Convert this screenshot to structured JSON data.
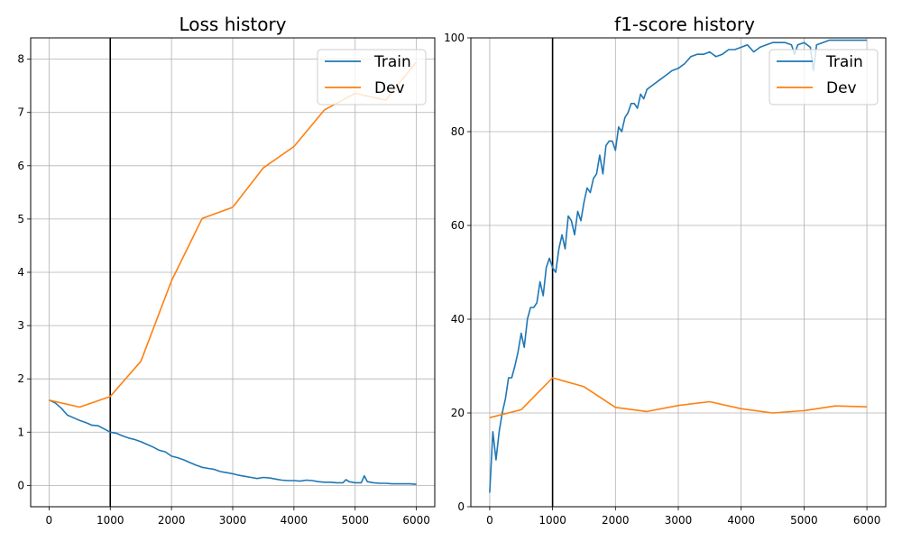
{
  "chart_data": [
    {
      "type": "line",
      "title": "Loss history",
      "xlim": [
        -300,
        6300
      ],
      "ylim": [
        -0.4,
        8.4
      ],
      "xticks": [
        0,
        1000,
        2000,
        3000,
        4000,
        5000,
        6000
      ],
      "yticks": [
        0,
        1,
        2,
        3,
        4,
        5,
        6,
        7,
        8
      ],
      "grid": true,
      "legend_position": "upper-right",
      "vline_x": 1000,
      "series": [
        {
          "name": "Train",
          "color": "#1f77b4",
          "x": [
            0,
            100,
            200,
            300,
            400,
            500,
            600,
            700,
            800,
            900,
            1000,
            1100,
            1200,
            1300,
            1400,
            1500,
            1600,
            1700,
            1800,
            1900,
            2000,
            2100,
            2200,
            2300,
            2400,
            2500,
            2600,
            2700,
            2800,
            2900,
            3000,
            3100,
            3200,
            3300,
            3400,
            3500,
            3600,
            3700,
            3800,
            3900,
            4000,
            4100,
            4200,
            4300,
            4400,
            4500,
            4600,
            4700,
            4800,
            4850,
            4900,
            5000,
            5100,
            5150,
            5200,
            5300,
            5400,
            5500,
            5600,
            5700,
            5800,
            5900,
            6000
          ],
          "y": [
            1.6,
            1.55,
            1.45,
            1.32,
            1.27,
            1.22,
            1.18,
            1.13,
            1.12,
            1.06,
            1.0,
            0.98,
            0.93,
            0.89,
            0.86,
            0.82,
            0.77,
            0.72,
            0.66,
            0.63,
            0.55,
            0.52,
            0.48,
            0.43,
            0.38,
            0.34,
            0.32,
            0.3,
            0.26,
            0.24,
            0.22,
            0.19,
            0.17,
            0.15,
            0.13,
            0.15,
            0.14,
            0.12,
            0.1,
            0.09,
            0.09,
            0.08,
            0.1,
            0.09,
            0.07,
            0.06,
            0.06,
            0.05,
            0.05,
            0.11,
            0.07,
            0.05,
            0.05,
            0.18,
            0.07,
            0.05,
            0.04,
            0.04,
            0.03,
            0.03,
            0.03,
            0.03,
            0.02
          ]
        },
        {
          "name": "Dev",
          "color": "#ff7f0e",
          "x": [
            0,
            500,
            1000,
            1500,
            2000,
            2500,
            3000,
            3500,
            4000,
            4500,
            5000,
            5500,
            6000
          ],
          "y": [
            1.6,
            1.47,
            1.67,
            2.33,
            3.84,
            5.01,
            5.22,
            5.96,
            6.36,
            7.05,
            7.36,
            7.23,
            7.95
          ]
        }
      ]
    },
    {
      "type": "line",
      "title": "f1-score history",
      "xlim": [
        -300,
        6300
      ],
      "ylim": [
        0,
        100
      ],
      "xticks": [
        0,
        1000,
        2000,
        3000,
        4000,
        5000,
        6000
      ],
      "yticks": [
        0,
        20,
        40,
        60,
        80,
        100
      ],
      "grid": true,
      "legend_position": "upper-right",
      "vline_x": 1000,
      "series": [
        {
          "name": "Train",
          "color": "#1f77b4",
          "x": [
            0,
            50,
            100,
            150,
            200,
            250,
            300,
            350,
            400,
            450,
            500,
            550,
            600,
            650,
            700,
            750,
            800,
            850,
            900,
            950,
            1000,
            1050,
            1100,
            1150,
            1200,
            1250,
            1300,
            1350,
            1400,
            1450,
            1500,
            1550,
            1600,
            1650,
            1700,
            1750,
            1800,
            1850,
            1900,
            1950,
            2000,
            2050,
            2100,
            2150,
            2200,
            2250,
            2300,
            2350,
            2400,
            2450,
            2500,
            2600,
            2700,
            2800,
            2900,
            3000,
            3100,
            3200,
            3300,
            3400,
            3500,
            3600,
            3700,
            3800,
            3900,
            4000,
            4100,
            4200,
            4300,
            4400,
            4500,
            4600,
            4700,
            4800,
            4850,
            4900,
            5000,
            5100,
            5150,
            5200,
            5300,
            5400,
            5500,
            5600,
            5700,
            5800,
            5900,
            6000
          ],
          "y": [
            3,
            16,
            10,
            16,
            20,
            23,
            27.5,
            27.5,
            30,
            33,
            37,
            34,
            40,
            42.5,
            42.5,
            43.5,
            48,
            45,
            51,
            53,
            51,
            50,
            55,
            58,
            55,
            62,
            61,
            58,
            63,
            61,
            65,
            68,
            67,
            70,
            71,
            75,
            71,
            77,
            78,
            78,
            76,
            81,
            80,
            83,
            84,
            86,
            86,
            85,
            88,
            87,
            89,
            90,
            91,
            92,
            93,
            93.5,
            94.5,
            96,
            96.5,
            96.5,
            97,
            96,
            96.5,
            97.5,
            97.5,
            98,
            98.5,
            97,
            98,
            98.5,
            99,
            99,
            99,
            98.5,
            96.5,
            98.5,
            99,
            98,
            93,
            98.5,
            99,
            99.5,
            99.5,
            99.5,
            99.5,
            99.5,
            99.5,
            99.5
          ]
        },
        {
          "name": "Dev",
          "color": "#ff7f0e",
          "x": [
            0,
            500,
            1000,
            1500,
            2000,
            2500,
            3000,
            3500,
            4000,
            4500,
            5000,
            5500,
            6000
          ],
          "y": [
            19,
            20.7,
            27.5,
            25.6,
            21.2,
            20.3,
            21.6,
            22.4,
            20.9,
            20,
            20.5,
            21.5,
            21.3
          ]
        }
      ]
    }
  ]
}
